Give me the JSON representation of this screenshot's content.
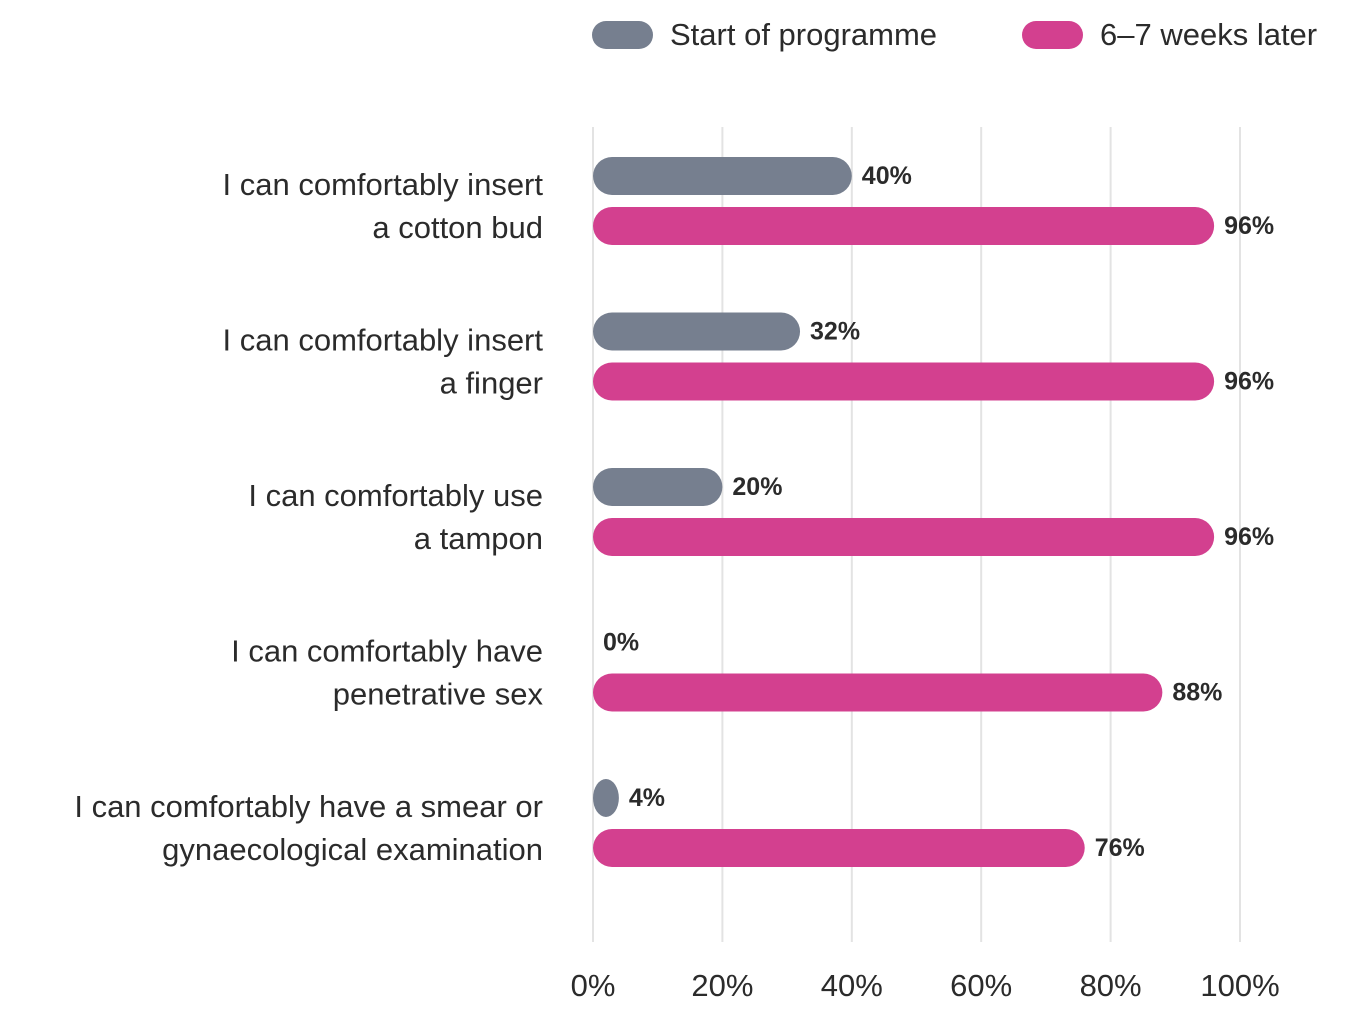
{
  "chart_data": {
    "type": "bar",
    "orientation": "horizontal",
    "categories": [
      [
        "I can comfortably insert",
        "a cotton bud"
      ],
      [
        "I can comfortably insert",
        "a finger"
      ],
      [
        "I can comfortably use",
        "a tampon"
      ],
      [
        "I can comfortably have",
        "penetrative sex"
      ],
      [
        "I can comfortably have a smear or",
        "gynaecological examination"
      ]
    ],
    "series": [
      {
        "name": "Start of programme",
        "color": "#767f8f",
        "values": [
          40,
          32,
          20,
          0,
          4
        ],
        "labels": [
          "40%",
          "32%",
          "20%",
          "0%",
          "4%"
        ]
      },
      {
        "name": "6–7 weeks later",
        "color": "#d3408f",
        "values": [
          96,
          96,
          96,
          88,
          76
        ],
        "labels": [
          "96%",
          "96%",
          "96%",
          "88%",
          "76%"
        ]
      }
    ],
    "xlim": [
      0,
      100
    ],
    "xticks": [
      0,
      20,
      40,
      60,
      80,
      100
    ],
    "xtick_labels": [
      "0%",
      "20%",
      "40%",
      "60%",
      "80%",
      "100%"
    ],
    "grid": "vertical",
    "legend_position": "top-right",
    "title": "",
    "xlabel": "",
    "ylabel": ""
  }
}
